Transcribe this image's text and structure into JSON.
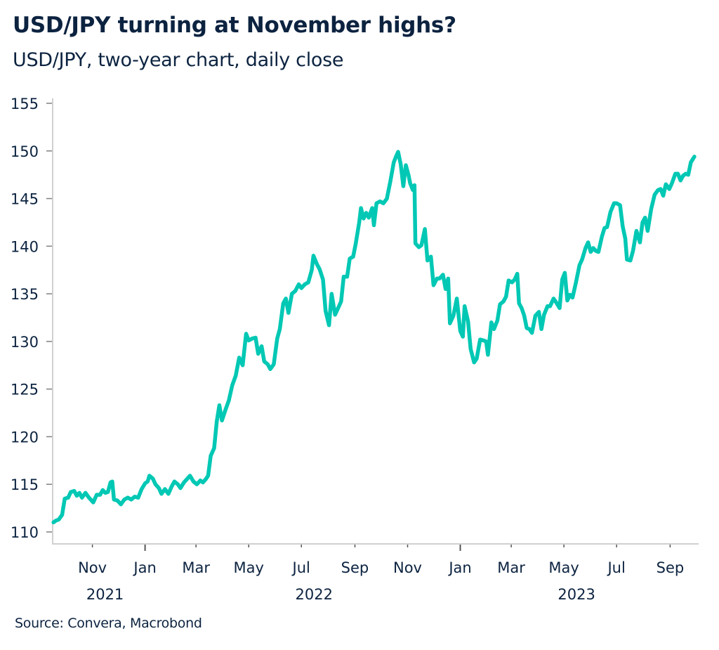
{
  "header": {
    "title": "USD/JPY turning at November highs?",
    "subtitle": "USD/JPY, two-year chart, daily close"
  },
  "footer": {
    "source": "Source: Convera, Macrobond"
  },
  "chart_data": {
    "type": "line",
    "title": "USD/JPY turning at November highs?",
    "subtitle": "USD/JPY, two-year chart, daily close",
    "xlabel": "",
    "ylabel": "",
    "ylim": [
      110,
      155
    ],
    "yticks": [
      110,
      115,
      120,
      125,
      130,
      135,
      140,
      145,
      150,
      155
    ],
    "xlim": [
      "2021-09-16",
      "2023-10-04"
    ],
    "xticks": [
      {
        "date": "2021-11-01",
        "label": "Nov",
        "year": "2021",
        "major": false
      },
      {
        "date": "2022-01-01",
        "label": "Jan",
        "year": "",
        "major": true
      },
      {
        "date": "2022-03-01",
        "label": "Mar",
        "year": "",
        "major": false
      },
      {
        "date": "2022-05-01",
        "label": "May",
        "year": "",
        "major": false
      },
      {
        "date": "2022-07-01",
        "label": "Jul",
        "year": "2022",
        "major": false
      },
      {
        "date": "2022-09-01",
        "label": "Sep",
        "year": "",
        "major": false
      },
      {
        "date": "2022-11-01",
        "label": "Nov",
        "year": "",
        "major": false
      },
      {
        "date": "2023-01-01",
        "label": "Jan",
        "year": "",
        "major": true
      },
      {
        "date": "2023-03-01",
        "label": "Mar",
        "year": "",
        "major": false
      },
      {
        "date": "2023-05-01",
        "label": "May",
        "year": "2023",
        "major": false
      },
      {
        "date": "2023-07-01",
        "label": "Jul",
        "year": "",
        "major": false
      },
      {
        "date": "2023-09-01",
        "label": "Sep",
        "year": "",
        "major": false
      }
    ],
    "grid": false,
    "legend": "none",
    "series": [
      {
        "name": "USD/JPY",
        "color": "#00c8b4",
        "points": [
          [
            "2021-09-17",
            111.0
          ],
          [
            "2021-09-20",
            111.2
          ],
          [
            "2021-09-23",
            111.3
          ],
          [
            "2021-09-27",
            111.8
          ],
          [
            "2021-09-30",
            113.5
          ],
          [
            "2021-10-04",
            113.6
          ],
          [
            "2021-10-07",
            114.2
          ],
          [
            "2021-10-11",
            114.3
          ],
          [
            "2021-10-14",
            113.8
          ],
          [
            "2021-10-17",
            114.1
          ],
          [
            "2021-10-20",
            113.6
          ],
          [
            "2021-10-24",
            114.1
          ],
          [
            "2021-10-28",
            113.6
          ],
          [
            "2021-11-02",
            113.1
          ],
          [
            "2021-11-06",
            113.9
          ],
          [
            "2021-11-10",
            113.9
          ],
          [
            "2021-11-13",
            114.4
          ],
          [
            "2021-11-16",
            114.1
          ],
          [
            "2021-11-19",
            114.2
          ],
          [
            "2021-11-22",
            115.2
          ],
          [
            "2021-11-24",
            115.3
          ],
          [
            "2021-11-26",
            113.4
          ],
          [
            "2021-11-30",
            113.3
          ],
          [
            "2021-12-04",
            112.9
          ],
          [
            "2021-12-08",
            113.4
          ],
          [
            "2021-12-12",
            113.6
          ],
          [
            "2021-12-16",
            113.4
          ],
          [
            "2021-12-20",
            113.7
          ],
          [
            "2021-12-24",
            113.6
          ],
          [
            "2021-12-28",
            114.5
          ],
          [
            "2022-01-01",
            115.1
          ],
          [
            "2022-01-04",
            115.3
          ],
          [
            "2022-01-06",
            115.9
          ],
          [
            "2022-01-10",
            115.6
          ],
          [
            "2022-01-13",
            115.0
          ],
          [
            "2022-01-17",
            114.6
          ],
          [
            "2022-01-20",
            114.0
          ],
          [
            "2022-01-24",
            114.5
          ],
          [
            "2022-01-28",
            114.0
          ],
          [
            "2022-02-01",
            114.8
          ],
          [
            "2022-02-04",
            115.3
          ],
          [
            "2022-02-08",
            115.0
          ],
          [
            "2022-02-11",
            114.6
          ],
          [
            "2022-02-15",
            115.2
          ],
          [
            "2022-02-19",
            115.6
          ],
          [
            "2022-02-22",
            115.9
          ],
          [
            "2022-02-26",
            115.3
          ],
          [
            "2022-03-02",
            115.0
          ],
          [
            "2022-03-06",
            115.4
          ],
          [
            "2022-03-09",
            115.2
          ],
          [
            "2022-03-12",
            115.5
          ],
          [
            "2022-03-15",
            115.9
          ],
          [
            "2022-03-18",
            118.0
          ],
          [
            "2022-03-22",
            118.8
          ],
          [
            "2022-03-25",
            121.6
          ],
          [
            "2022-03-28",
            123.3
          ],
          [
            "2022-03-31",
            121.7
          ],
          [
            "2022-04-04",
            122.8
          ],
          [
            "2022-04-08",
            123.8
          ],
          [
            "2022-04-12",
            125.4
          ],
          [
            "2022-04-16",
            126.4
          ],
          [
            "2022-04-20",
            128.3
          ],
          [
            "2022-04-24",
            127.5
          ],
          [
            "2022-04-28",
            130.8
          ],
          [
            "2022-05-01",
            130.1
          ],
          [
            "2022-05-05",
            130.3
          ],
          [
            "2022-05-09",
            130.4
          ],
          [
            "2022-05-12",
            128.7
          ],
          [
            "2022-05-16",
            129.5
          ],
          [
            "2022-05-19",
            127.9
          ],
          [
            "2022-05-23",
            127.6
          ],
          [
            "2022-05-26",
            127.1
          ],
          [
            "2022-05-30",
            127.6
          ],
          [
            "2022-06-03",
            130.3
          ],
          [
            "2022-06-06",
            131.3
          ],
          [
            "2022-06-10",
            134.0
          ],
          [
            "2022-06-13",
            134.5
          ],
          [
            "2022-06-16",
            133.0
          ],
          [
            "2022-06-20",
            135.0
          ],
          [
            "2022-06-24",
            135.3
          ],
          [
            "2022-06-28",
            136.0
          ],
          [
            "2022-07-01",
            135.6
          ],
          [
            "2022-07-05",
            136.0
          ],
          [
            "2022-07-09",
            136.2
          ],
          [
            "2022-07-13",
            137.5
          ],
          [
            "2022-07-15",
            139.0
          ],
          [
            "2022-07-19",
            138.1
          ],
          [
            "2022-07-22",
            137.6
          ],
          [
            "2022-07-26",
            136.5
          ],
          [
            "2022-07-29",
            133.2
          ],
          [
            "2022-08-02",
            131.7
          ],
          [
            "2022-08-05",
            135.0
          ],
          [
            "2022-08-09",
            132.8
          ],
          [
            "2022-08-12",
            133.4
          ],
          [
            "2022-08-16",
            134.2
          ],
          [
            "2022-08-19",
            136.8
          ],
          [
            "2022-08-23",
            136.8
          ],
          [
            "2022-08-26",
            138.7
          ],
          [
            "2022-08-30",
            138.9
          ],
          [
            "2022-09-02",
            140.3
          ],
          [
            "2022-09-06",
            142.5
          ],
          [
            "2022-09-08",
            144.0
          ],
          [
            "2022-09-11",
            142.9
          ],
          [
            "2022-09-14",
            143.5
          ],
          [
            "2022-09-17",
            143.0
          ],
          [
            "2022-09-21",
            144.0
          ],
          [
            "2022-09-23",
            142.2
          ],
          [
            "2022-09-26",
            144.5
          ],
          [
            "2022-09-30",
            144.7
          ],
          [
            "2022-10-04",
            144.5
          ],
          [
            "2022-10-08",
            145.0
          ],
          [
            "2022-10-12",
            146.8
          ],
          [
            "2022-10-16",
            148.8
          ],
          [
            "2022-10-19",
            149.5
          ],
          [
            "2022-10-21",
            149.9
          ],
          [
            "2022-10-24",
            148.6
          ],
          [
            "2022-10-27",
            146.3
          ],
          [
            "2022-10-30",
            148.5
          ],
          [
            "2022-11-02",
            147.5
          ],
          [
            "2022-11-04",
            146.6
          ],
          [
            "2022-11-07",
            145.9
          ],
          [
            "2022-11-09",
            146.4
          ],
          [
            "2022-11-10",
            140.3
          ],
          [
            "2022-11-14",
            139.9
          ],
          [
            "2022-11-17",
            140.1
          ],
          [
            "2022-11-21",
            141.8
          ],
          [
            "2022-11-24",
            138.5
          ],
          [
            "2022-11-28",
            138.9
          ],
          [
            "2022-12-01",
            135.9
          ],
          [
            "2022-12-05",
            136.6
          ],
          [
            "2022-12-08",
            136.6
          ],
          [
            "2022-12-12",
            137.0
          ],
          [
            "2022-12-15",
            135.5
          ],
          [
            "2022-12-18",
            136.6
          ],
          [
            "2022-12-20",
            131.9
          ],
          [
            "2022-12-24",
            132.7
          ],
          [
            "2022-12-28",
            134.5
          ],
          [
            "2023-01-01",
            131.1
          ],
          [
            "2023-01-04",
            130.5
          ],
          [
            "2023-01-06",
            133.7
          ],
          [
            "2023-01-10",
            132.1
          ],
          [
            "2023-01-13",
            129.2
          ],
          [
            "2023-01-17",
            127.8
          ],
          [
            "2023-01-20",
            128.2
          ],
          [
            "2023-01-24",
            130.2
          ],
          [
            "2023-01-28",
            130.1
          ],
          [
            "2023-01-31",
            130.0
          ],
          [
            "2023-02-02",
            128.6
          ],
          [
            "2023-02-06",
            132.0
          ],
          [
            "2023-02-09",
            131.3
          ],
          [
            "2023-02-13",
            132.2
          ],
          [
            "2023-02-16",
            133.9
          ],
          [
            "2023-02-20",
            134.2
          ],
          [
            "2023-02-23",
            134.7
          ],
          [
            "2023-02-26",
            136.4
          ],
          [
            "2023-03-02",
            136.2
          ],
          [
            "2023-03-05",
            136.5
          ],
          [
            "2023-03-08",
            137.1
          ],
          [
            "2023-03-10",
            134.0
          ],
          [
            "2023-03-13",
            133.5
          ],
          [
            "2023-03-16",
            132.7
          ],
          [
            "2023-03-19",
            131.4
          ],
          [
            "2023-03-22",
            131.3
          ],
          [
            "2023-03-25",
            130.9
          ],
          [
            "2023-03-29",
            132.7
          ],
          [
            "2023-04-02",
            133.1
          ],
          [
            "2023-04-05",
            131.3
          ],
          [
            "2023-04-08",
            132.8
          ],
          [
            "2023-04-12",
            133.7
          ],
          [
            "2023-04-15",
            133.7
          ],
          [
            "2023-04-19",
            134.5
          ],
          [
            "2023-04-22",
            134.1
          ],
          [
            "2023-04-26",
            133.5
          ],
          [
            "2023-04-29",
            136.5
          ],
          [
            "2023-05-02",
            137.2
          ],
          [
            "2023-05-05",
            134.3
          ],
          [
            "2023-05-08",
            134.9
          ],
          [
            "2023-05-11",
            134.6
          ],
          [
            "2023-05-15",
            136.2
          ],
          [
            "2023-05-19",
            138.0
          ],
          [
            "2023-05-22",
            138.6
          ],
          [
            "2023-05-26",
            139.8
          ],
          [
            "2023-05-29",
            140.4
          ],
          [
            "2023-06-01",
            139.4
          ],
          [
            "2023-06-04",
            139.8
          ],
          [
            "2023-06-07",
            139.5
          ],
          [
            "2023-06-10",
            139.4
          ],
          [
            "2023-06-14",
            141.0
          ],
          [
            "2023-06-17",
            141.9
          ],
          [
            "2023-06-20",
            142.0
          ],
          [
            "2023-06-24",
            143.6
          ],
          [
            "2023-06-28",
            144.5
          ],
          [
            "2023-07-01",
            144.5
          ],
          [
            "2023-07-05",
            144.3
          ],
          [
            "2023-07-08",
            142.1
          ],
          [
            "2023-07-11",
            140.8
          ],
          [
            "2023-07-13",
            138.6
          ],
          [
            "2023-07-17",
            138.5
          ],
          [
            "2023-07-20",
            139.5
          ],
          [
            "2023-07-24",
            141.6
          ],
          [
            "2023-07-28",
            140.4
          ],
          [
            "2023-07-31",
            142.5
          ],
          [
            "2023-08-03",
            143.0
          ],
          [
            "2023-08-06",
            141.6
          ],
          [
            "2023-08-10",
            143.9
          ],
          [
            "2023-08-14",
            145.4
          ],
          [
            "2023-08-18",
            145.9
          ],
          [
            "2023-08-21",
            146.0
          ],
          [
            "2023-08-24",
            145.3
          ],
          [
            "2023-08-27",
            146.5
          ],
          [
            "2023-08-31",
            146.0
          ],
          [
            "2023-09-03",
            146.6
          ],
          [
            "2023-09-07",
            147.6
          ],
          [
            "2023-09-10",
            147.6
          ],
          [
            "2023-09-13",
            146.9
          ],
          [
            "2023-09-16",
            147.4
          ],
          [
            "2023-09-19",
            147.6
          ],
          [
            "2023-09-22",
            147.5
          ],
          [
            "2023-09-25",
            148.8
          ],
          [
            "2023-09-27",
            149.1
          ],
          [
            "2023-09-29",
            149.4
          ]
        ]
      }
    ]
  }
}
